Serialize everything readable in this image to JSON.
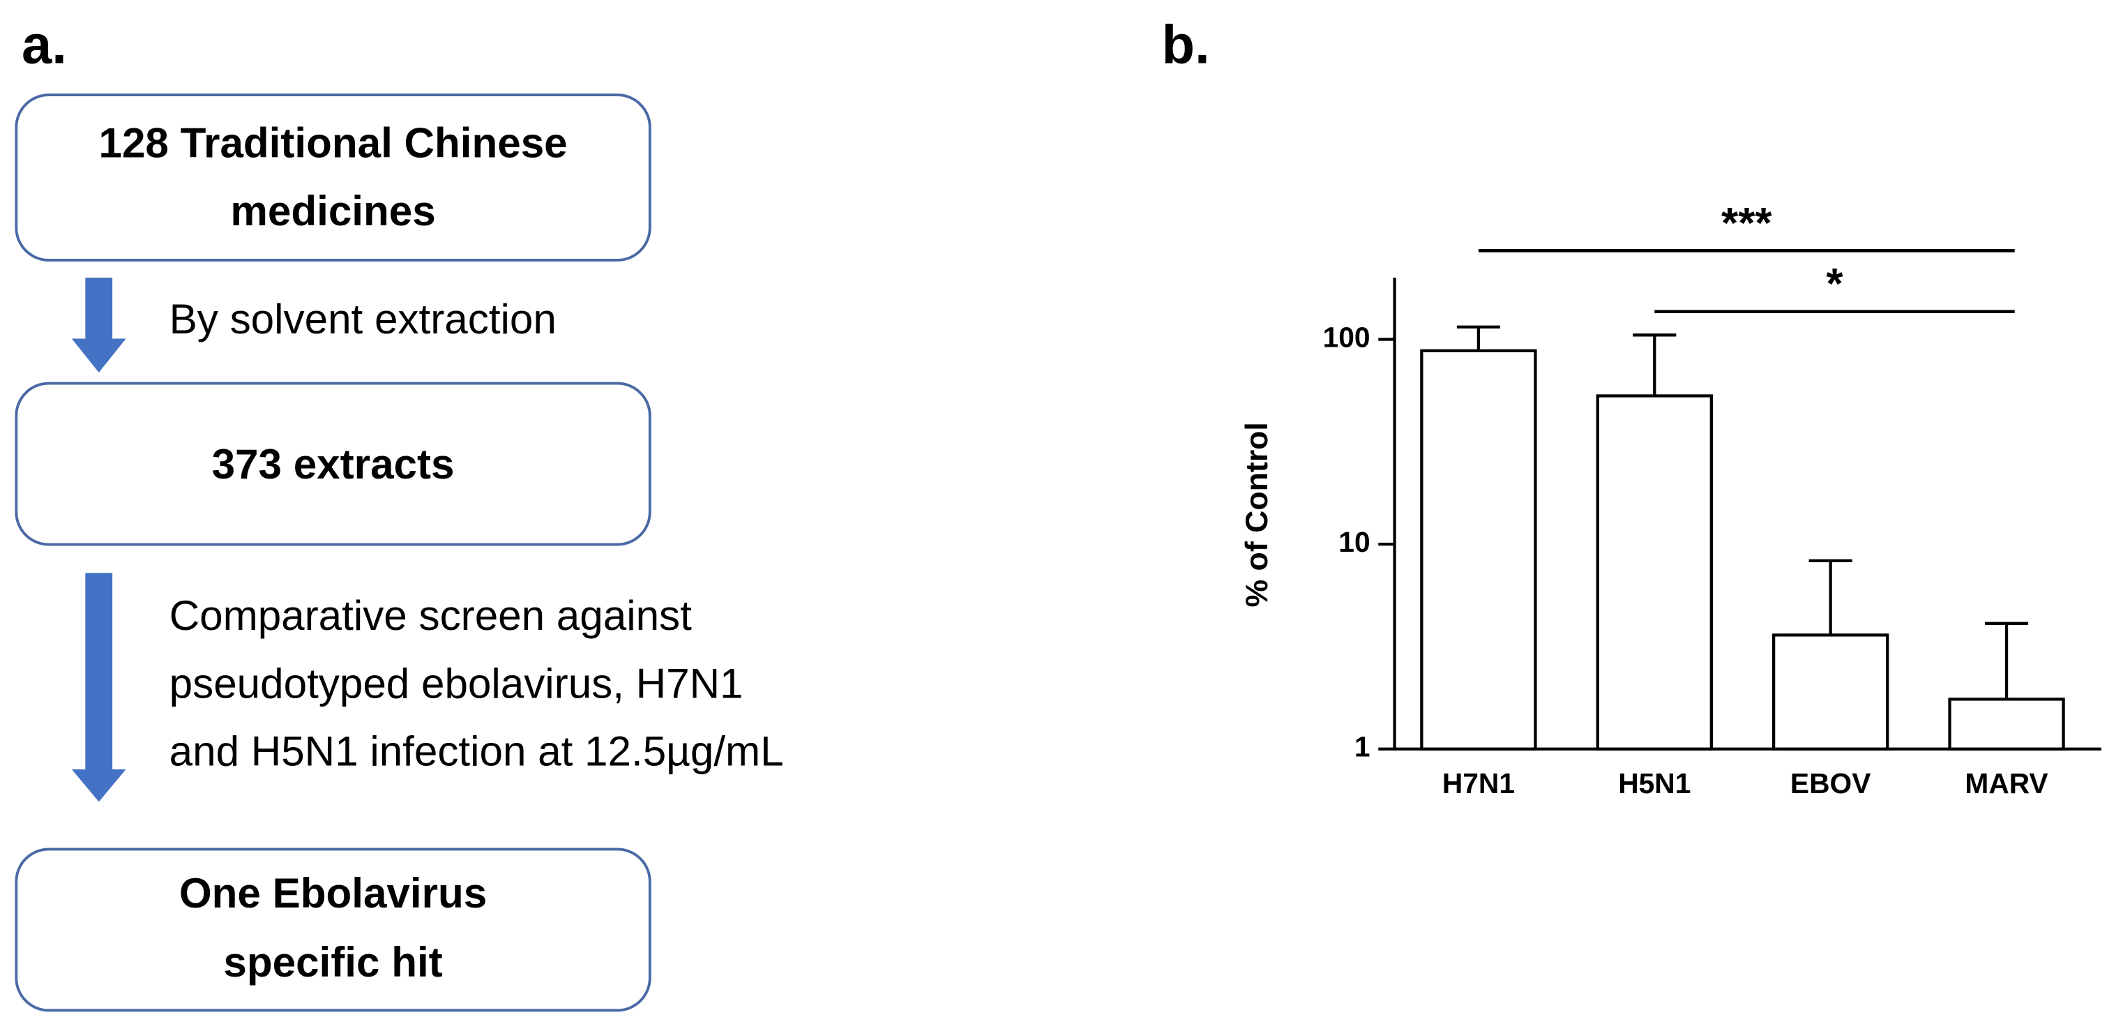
{
  "panel_a": {
    "label": "a.",
    "nodes": [
      {
        "lines": [
          "128 Traditional Chinese",
          "medicines"
        ]
      },
      {
        "lines": [
          "373 extracts"
        ]
      },
      {
        "lines": [
          "One Ebolavirus",
          "specific hit"
        ]
      }
    ],
    "steps": [
      {
        "lines": [
          "By solvent extraction"
        ]
      },
      {
        "lines": [
          "Comparative screen against",
          "pseudotyped ebolavirus, H7N1",
          "and H5N1 infection at 12.5µg/mL"
        ]
      }
    ]
  },
  "chart_data": {
    "type": "bar",
    "panel_label": "b.",
    "ylabel": "% of Control",
    "categories": [
      "H7N1",
      "H5N1",
      "EBOV",
      "MARV"
    ],
    "values": [
      88,
      53,
      3.6,
      1.75
    ],
    "errors": [
      27,
      52,
      4.7,
      2.35
    ],
    "color": "#ffffff",
    "edgecolor": "#000000",
    "yscale": "log",
    "ylim": [
      1,
      200
    ],
    "yticks": [
      1,
      10,
      100
    ],
    "annotations": [
      {
        "text": "***",
        "from": 0,
        "to": 3
      },
      {
        "text": "*",
        "from": 1,
        "to": 3
      }
    ]
  }
}
